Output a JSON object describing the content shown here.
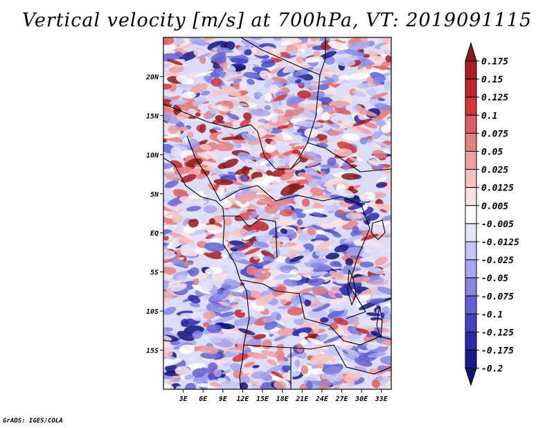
{
  "title": "Vertical velocity [m/s] at 700hPa, VT: 2019091115",
  "credit": "GrADS: IGES/COLA",
  "map": {
    "variable": "Vertical velocity",
    "units": "m/s",
    "level": "700hPa",
    "valid_time": "2019091115",
    "lon_range": [
      0,
      34.5
    ],
    "lat_range": [
      -20,
      25
    ],
    "lat_labels": [
      {
        "lat": 20,
        "text": "20N"
      },
      {
        "lat": 15,
        "text": "15N"
      },
      {
        "lat": 10,
        "text": "10N"
      },
      {
        "lat": 5,
        "text": "5N"
      },
      {
        "lat": 0,
        "text": "EQ"
      },
      {
        "lat": -5,
        "text": "5S"
      },
      {
        "lat": -10,
        "text": "10S"
      },
      {
        "lat": -15,
        "text": "15S"
      }
    ],
    "lon_labels": [
      {
        "lon": 3,
        "text": "3E"
      },
      {
        "lon": 6,
        "text": "6E"
      },
      {
        "lon": 9,
        "text": "9E"
      },
      {
        "lon": 12,
        "text": "12E"
      },
      {
        "lon": 15,
        "text": "15E"
      },
      {
        "lon": 18,
        "text": "18E"
      },
      {
        "lon": 21,
        "text": "21E"
      },
      {
        "lon": 24,
        "text": "24E"
      },
      {
        "lon": 27,
        "text": "27E"
      },
      {
        "lon": 30,
        "text": "30E"
      },
      {
        "lon": 33,
        "text": "33E"
      }
    ]
  },
  "colorbar": {
    "labels": [
      "0.175",
      "0.15",
      "0.125",
      "0.1",
      "0.075",
      "0.05",
      "0.025",
      "0.0125",
      "0.005",
      "-0.005",
      "-0.0125",
      "-0.025",
      "-0.05",
      "-0.075",
      "-0.1",
      "-0.125",
      "-0.175",
      "-0.2"
    ],
    "colors": [
      "#8b1a1a",
      "#a51f24",
      "#c0262d",
      "#d2373b",
      "#dd5e5e",
      "#e68080",
      "#efa1a1",
      "#f6c3c3",
      "#fbe2e2",
      "#ffffff",
      "#e3e3fb",
      "#c6c6f6",
      "#a6a6ee",
      "#8787e2",
      "#6363d6",
      "#4444c3",
      "#2a2aa8",
      "#1a1a8c",
      "#14147a"
    ]
  }
}
